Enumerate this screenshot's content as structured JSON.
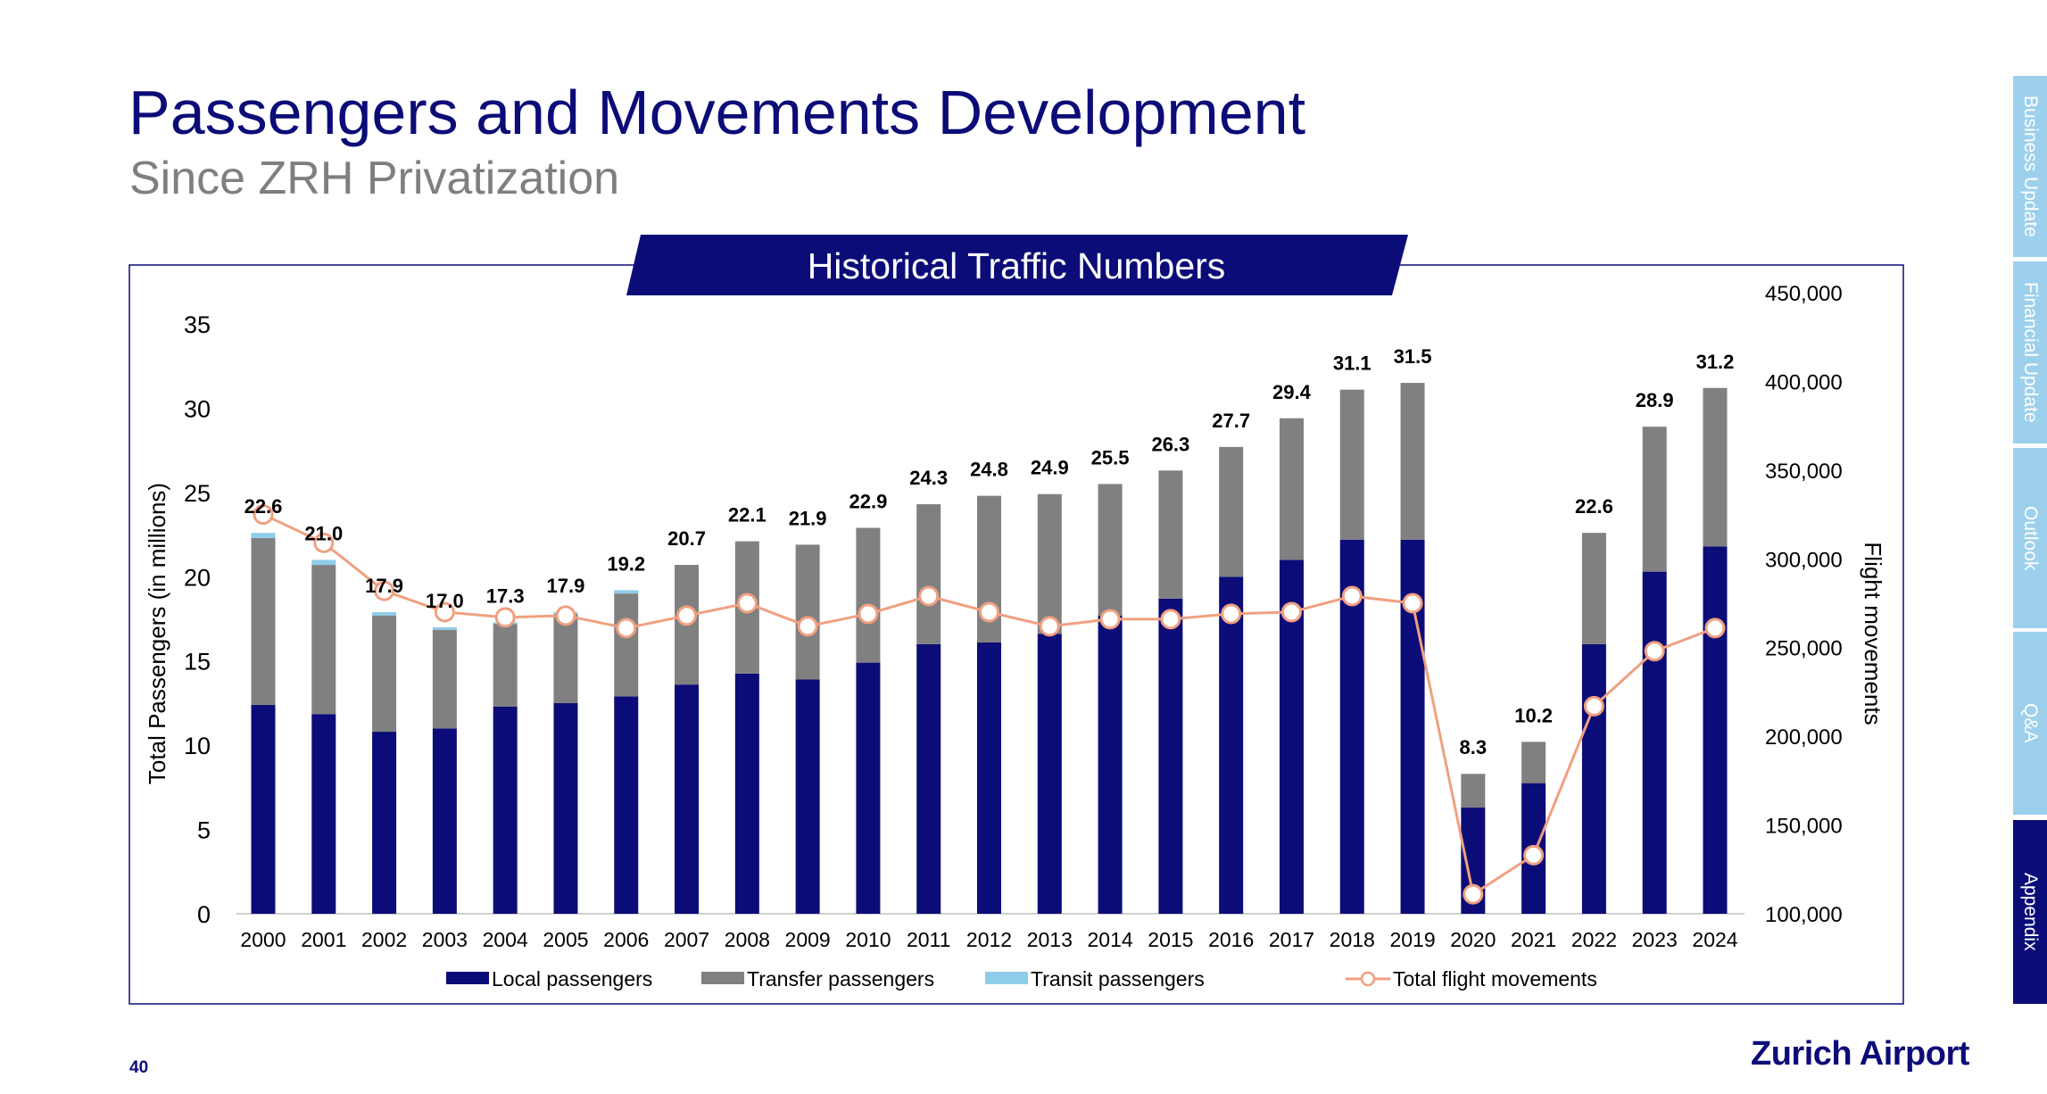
{
  "header": {
    "title": "Passengers and Movements Development",
    "subtitle": "Since ZRH Privatization"
  },
  "nav_tabs": [
    {
      "label": "Business Update",
      "active": false
    },
    {
      "label": "Financial Update",
      "active": false
    },
    {
      "label": "Outlook",
      "active": false
    },
    {
      "label": "Q&A",
      "active": false
    },
    {
      "label": "Appendix",
      "active": true
    }
  ],
  "footer": {
    "page_number": "40",
    "logo_text": "Zurich Airport"
  },
  "colors": {
    "local": "#0c0c78",
    "transfer": "#808080",
    "transit": "#8ecdea",
    "movements": "#f0a080",
    "navy": "#0c0c78"
  },
  "chart_data": {
    "type": "bar",
    "title": "Historical Traffic Numbers",
    "ylabel": "Total Passengers (in millions)",
    "y2label": "Flight movements",
    "ylim": [
      0,
      35
    ],
    "yticks": [
      "0",
      "5",
      "10",
      "15",
      "20",
      "25",
      "30",
      "35"
    ],
    "y2lim": [
      100000,
      450000
    ],
    "y2ticks": [
      "100,000",
      "150,000",
      "200,000",
      "250,000",
      "300,000",
      "350,000",
      "400,000",
      "450,000"
    ],
    "categories": [
      "2000",
      "2001",
      "2002",
      "2003",
      "2004",
      "2005",
      "2006",
      "2007",
      "2008",
      "2009",
      "2010",
      "2011",
      "2012",
      "2013",
      "2014",
      "2015",
      "2016",
      "2017",
      "2018",
      "2019",
      "2020",
      "2021",
      "2022",
      "2023",
      "2024"
    ],
    "series": [
      {
        "name": "Local passengers",
        "type": "bar",
        "values": [
          12.4,
          11.85,
          10.8,
          11.0,
          12.3,
          12.5,
          12.9,
          13.6,
          14.25,
          13.9,
          14.9,
          16.0,
          16.1,
          16.6,
          17.7,
          18.7,
          20.0,
          21.0,
          22.2,
          22.2,
          6.3,
          7.75,
          16.0,
          20.3,
          21.8
        ]
      },
      {
        "name": "Transfer passengers",
        "type": "bar",
        "values": [
          9.9,
          8.85,
          6.9,
          5.85,
          4.9,
          5.3,
          6.1,
          7.1,
          7.85,
          8.0,
          8.0,
          8.3,
          8.7,
          8.3,
          7.8,
          7.6,
          7.7,
          8.4,
          8.9,
          9.3,
          2.0,
          2.45,
          6.6,
          8.6,
          9.4
        ]
      },
      {
        "name": "Transit passengers",
        "type": "bar",
        "values": [
          0.3,
          0.3,
          0.2,
          0.15,
          0.1,
          0.1,
          0.2,
          0,
          0,
          0,
          0,
          0,
          0,
          0,
          0,
          0,
          0,
          0,
          0,
          0,
          0,
          0,
          0,
          0,
          0
        ]
      },
      {
        "name": "Total flight movements",
        "type": "line",
        "axis": "right",
        "values": [
          325000,
          309000,
          282000,
          270000,
          267000,
          268000,
          261000,
          268000,
          275000,
          262000,
          269000,
          279000,
          270000,
          262000,
          266000,
          266000,
          269000,
          270000,
          279000,
          275000,
          111000,
          133000,
          217000,
          248000,
          261000
        ]
      }
    ],
    "totals": [
      "22.6",
      "21.0",
      "17.9",
      "17.0",
      "17.3",
      "17.9",
      "19.2",
      "20.7",
      "22.1",
      "21.9",
      "22.9",
      "24.3",
      "24.8",
      "24.9",
      "25.5",
      "26.3",
      "27.7",
      "29.4",
      "31.1",
      "31.5",
      "8.3",
      "10.2",
      "22.6",
      "28.9",
      "31.2"
    ],
    "legend_position": "bottom"
  }
}
